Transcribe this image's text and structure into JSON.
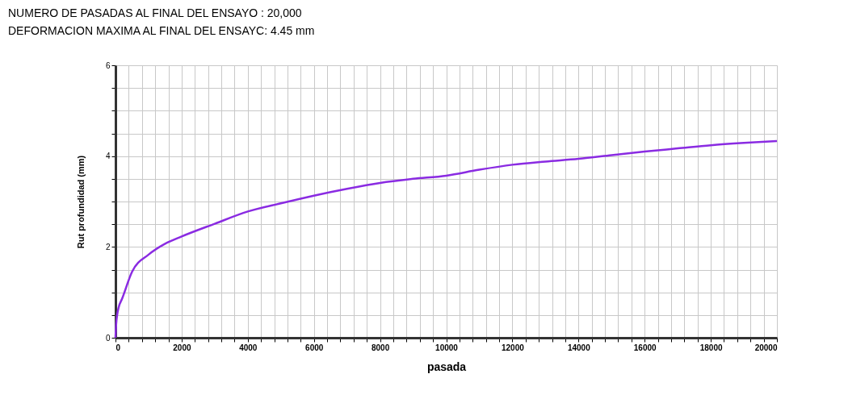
{
  "chart_data": {
    "type": "line",
    "title": "NUMERO DE PASADAS AL FINAL DEL ENSAYO  : 20,000",
    "subtitle": "DEFORMACION MAXIMA AL FINAL DEL ENSAYC: 4.45 mm",
    "xlabel": "pasada",
    "ylabel": "Rut profundidad (mm)",
    "x": [
      0,
      20,
      50,
      100,
      200,
      500,
      1000,
      1500,
      2000,
      3000,
      4000,
      5000,
      6000,
      7000,
      8000,
      9000,
      10000,
      11000,
      12000,
      13000,
      14000,
      15000,
      16000,
      17000,
      18000,
      19000,
      20000
    ],
    "series": [
      {
        "color": "#8a2be2",
        "values": [
          0,
          0.3,
          0.5,
          0.68,
          0.86,
          1.45,
          1.83,
          2.07,
          2.23,
          2.51,
          2.78,
          2.96,
          3.13,
          3.28,
          3.41,
          3.5,
          3.57,
          3.7,
          3.81,
          3.88,
          3.94,
          4.02,
          4.1,
          4.17,
          4.24,
          4.29,
          4.33
        ]
      }
    ],
    "xlim": [
      0,
      20000
    ],
    "ylim": [
      0,
      6
    ],
    "xticks": [
      0,
      {
        "value": 400,
        "label": null
      },
      {
        "value": 800,
        "label": null
      },
      {
        "value": 1200,
        "label": null
      },
      {
        "value": 1600,
        "label": null
      },
      2000,
      {
        "value": 2400,
        "label": null
      },
      {
        "value": 2800,
        "label": null
      },
      {
        "value": 3200,
        "label": null
      },
      {
        "value": 3600,
        "label": null
      },
      4000,
      {
        "value": 4400,
        "label": null
      },
      {
        "value": 4800,
        "label": null
      },
      {
        "value": 5200,
        "label": null
      },
      {
        "value": 5600,
        "label": null
      },
      6000,
      {
        "value": 6400,
        "label": null
      },
      {
        "value": 6800,
        "label": null
      },
      {
        "value": 7200,
        "label": null
      },
      {
        "value": 7600,
        "label": null
      },
      8000,
      {
        "value": 8400,
        "label": null
      },
      {
        "value": 8800,
        "label": null
      },
      {
        "value": 9200,
        "label": null
      },
      {
        "value": 9600,
        "label": null
      },
      10000,
      {
        "value": 10400,
        "label": null
      },
      {
        "value": 10800,
        "label": null
      },
      {
        "value": 11200,
        "label": null
      },
      {
        "value": 11600,
        "label": null
      },
      12000,
      {
        "value": 12400,
        "label": null
      },
      {
        "value": 12800,
        "label": null
      },
      {
        "value": 13200,
        "label": null
      },
      {
        "value": 13600,
        "label": null
      },
      14000,
      {
        "value": 14400,
        "label": null
      },
      {
        "value": 14800,
        "label": null
      },
      {
        "value": 15200,
        "label": null
      },
      {
        "value": 15600,
        "label": null
      },
      16000,
      {
        "value": 16400,
        "label": null
      },
      {
        "value": 16800,
        "label": null
      },
      {
        "value": 17200,
        "label": null
      },
      {
        "value": 17600,
        "label": null
      },
      18000,
      {
        "value": 18400,
        "label": null
      },
      {
        "value": 18800,
        "label": null
      },
      {
        "value": 19200,
        "label": null
      },
      {
        "value": 19600,
        "label": null
      },
      20000
    ],
    "yticks": [
      0,
      {
        "value": 0.5,
        "label": null
      },
      {
        "value": 1,
        "label": null
      },
      {
        "value": 1.5,
        "label": null
      },
      2,
      {
        "value": 2.5,
        "label": null
      },
      {
        "value": 3,
        "label": null
      },
      {
        "value": 3.5,
        "label": null
      },
      4,
      {
        "value": 4.5,
        "label": null
      },
      {
        "value": 5,
        "label": null
      },
      {
        "value": 5.5,
        "label": null
      },
      6
    ],
    "grid": true,
    "line_style": "solid",
    "marker": "none"
  }
}
